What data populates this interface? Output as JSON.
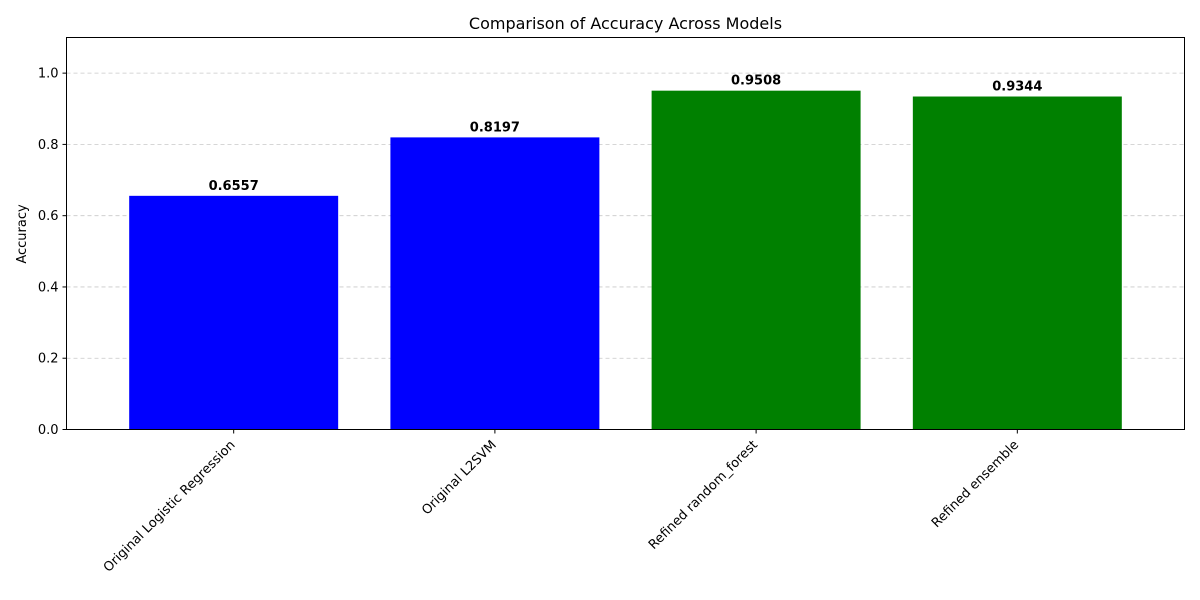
{
  "chart_data": {
    "type": "bar",
    "title": "Comparison of Accuracy Across Models",
    "xlabel": "",
    "ylabel": "Accuracy",
    "categories": [
      "Original Logistic Regression",
      "Original L2SVM",
      "Refined random_forest",
      "Refined ensemble"
    ],
    "values": [
      0.6557,
      0.8197,
      0.9508,
      0.9344
    ],
    "value_labels": [
      "0.6557",
      "0.8197",
      "0.9508",
      "0.9344"
    ],
    "bar_colors": [
      "#0000ff",
      "#0000ff",
      "#008000",
      "#008000"
    ],
    "ylim": [
      0,
      1.1
    ],
    "yticks": [
      0.0,
      0.2,
      0.4,
      0.6,
      0.8,
      1.0
    ],
    "ytick_labels": [
      "0.0",
      "0.2",
      "0.4",
      "0.6",
      "0.8",
      "1.0"
    ],
    "grid": {
      "axis": "y",
      "style": "dashed",
      "color": "#c8c8c8"
    },
    "legend": "none"
  }
}
